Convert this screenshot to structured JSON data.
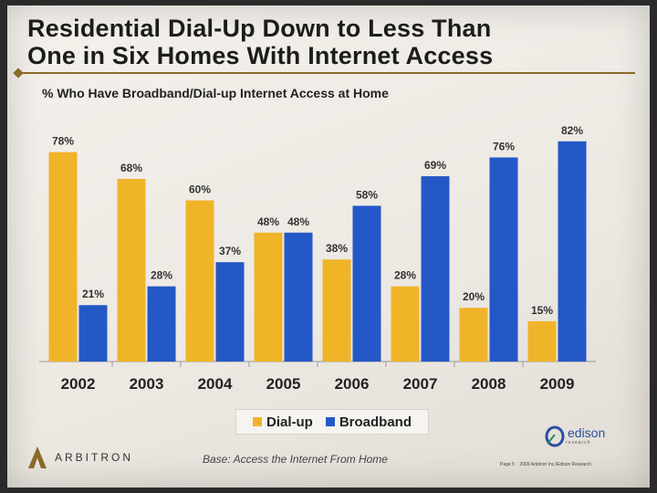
{
  "slide": {
    "title_line1": "Residential Dial-Up Down to Less Than",
    "title_line2": "One in Six Homes With Internet Access",
    "subtitle": "% Who Have Broadband/Dial-up Internet Access at Home",
    "base_note": "Base: Access the Internet From Home",
    "left_logo_text": "ARBITRON",
    "right_logo_text": "edison",
    "right_logo_tag": "research",
    "footer_page": "Page 5",
    "footer_copyright": "2009 Arbitron Inc./Edison Research"
  },
  "colors": {
    "dialup": "#f0b429",
    "broadband": "#2458c6"
  },
  "chart_data": {
    "type": "bar",
    "title": "% Who Have Broadband/Dial-up Internet Access at Home",
    "categories": [
      "2002",
      "2003",
      "2004",
      "2005",
      "2006",
      "2007",
      "2008",
      "2009"
    ],
    "series": [
      {
        "name": "Dial-up",
        "values": [
          78,
          68,
          60,
          48,
          38,
          28,
          20,
          15
        ],
        "labels": [
          "78%",
          "68%",
          "60%",
          "48%",
          "38%",
          "28%",
          "20%",
          "15%"
        ]
      },
      {
        "name": "Broadband",
        "values": [
          21,
          28,
          37,
          48,
          58,
          69,
          76,
          82
        ],
        "labels": [
          "21%",
          "28%",
          "37%",
          "48%",
          "58%",
          "69%",
          "76%",
          "82%"
        ]
      }
    ],
    "ylim": [
      0,
      100
    ],
    "xlabel": "",
    "ylabel": "",
    "legend": "bottom",
    "grid": false
  }
}
